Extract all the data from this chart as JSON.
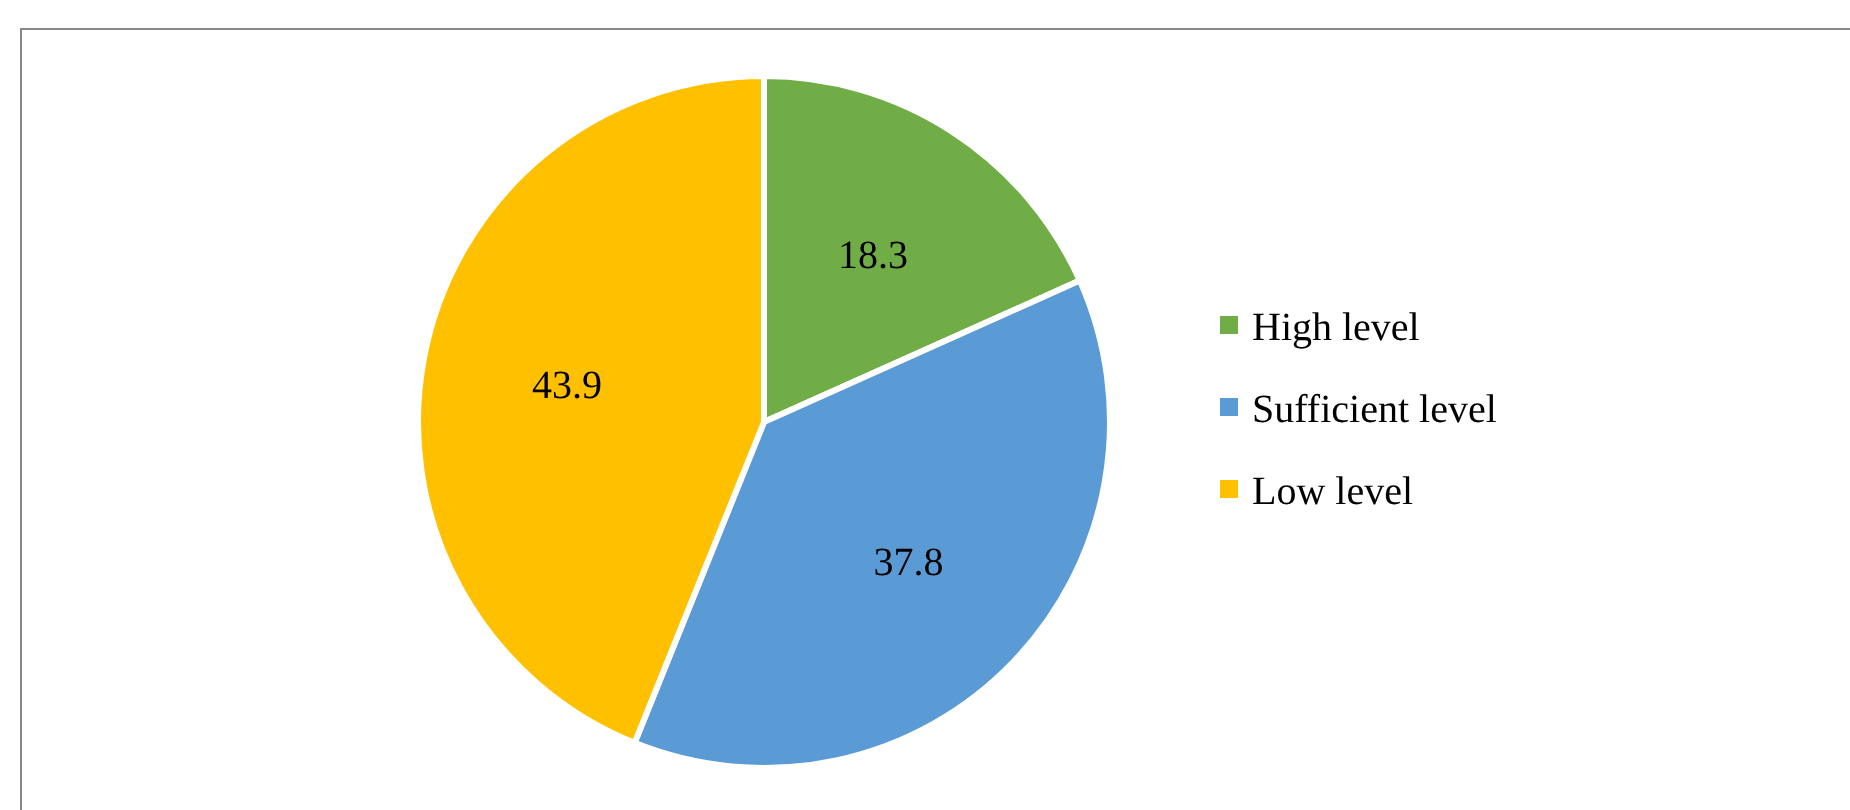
{
  "chart_data": {
    "type": "pie",
    "categories": [
      "High level",
      "Sufficient level",
      "Low level"
    ],
    "values": [
      18.3,
      37.8,
      43.9
    ],
    "colors": [
      "#70ad47",
      "#5b9bd5",
      "#ffc000"
    ],
    "data_labels": true,
    "legend": "right"
  }
}
